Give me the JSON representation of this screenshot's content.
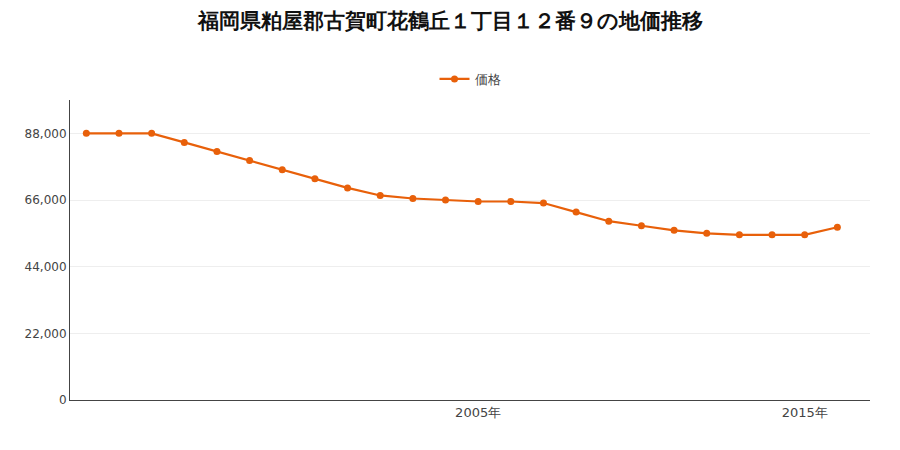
{
  "chart_data": {
    "type": "line",
    "title": "福岡県粕屋郡古賀町花鶴丘１丁目１２番９の地価推移",
    "x": [
      1993,
      1994,
      1995,
      1996,
      1997,
      1998,
      1999,
      2000,
      2001,
      2002,
      2003,
      2004,
      2005,
      2006,
      2007,
      2008,
      2009,
      2010,
      2011,
      2012,
      2013,
      2014,
      2015,
      2016
    ],
    "series": [
      {
        "name": "価格",
        "color": "#E8600A",
        "marker": "circle",
        "values": [
          88000,
          88000,
          88000,
          85000,
          82000,
          79000,
          76000,
          73000,
          70000,
          67500,
          66500,
          66000,
          65500,
          65500,
          65000,
          62000,
          59000,
          57500,
          56000,
          55000,
          54500,
          54500,
          54500,
          57000
        ]
      }
    ],
    "xlim": [
      1992.5,
      2017
    ],
    "xticks": [
      {
        "value": 2005,
        "label": "2005年"
      },
      {
        "value": 2015,
        "label": "2015年"
      }
    ],
    "ylim": [
      0,
      99000
    ],
    "yticks": [
      0,
      {
        "value": 22000,
        "label": "22,000"
      },
      {
        "value": 44000,
        "label": "44,000"
      },
      {
        "value": 66000,
        "label": "66,000"
      },
      {
        "value": 88000,
        "label": "88,000"
      }
    ],
    "grid": "y",
    "legend": "top"
  }
}
